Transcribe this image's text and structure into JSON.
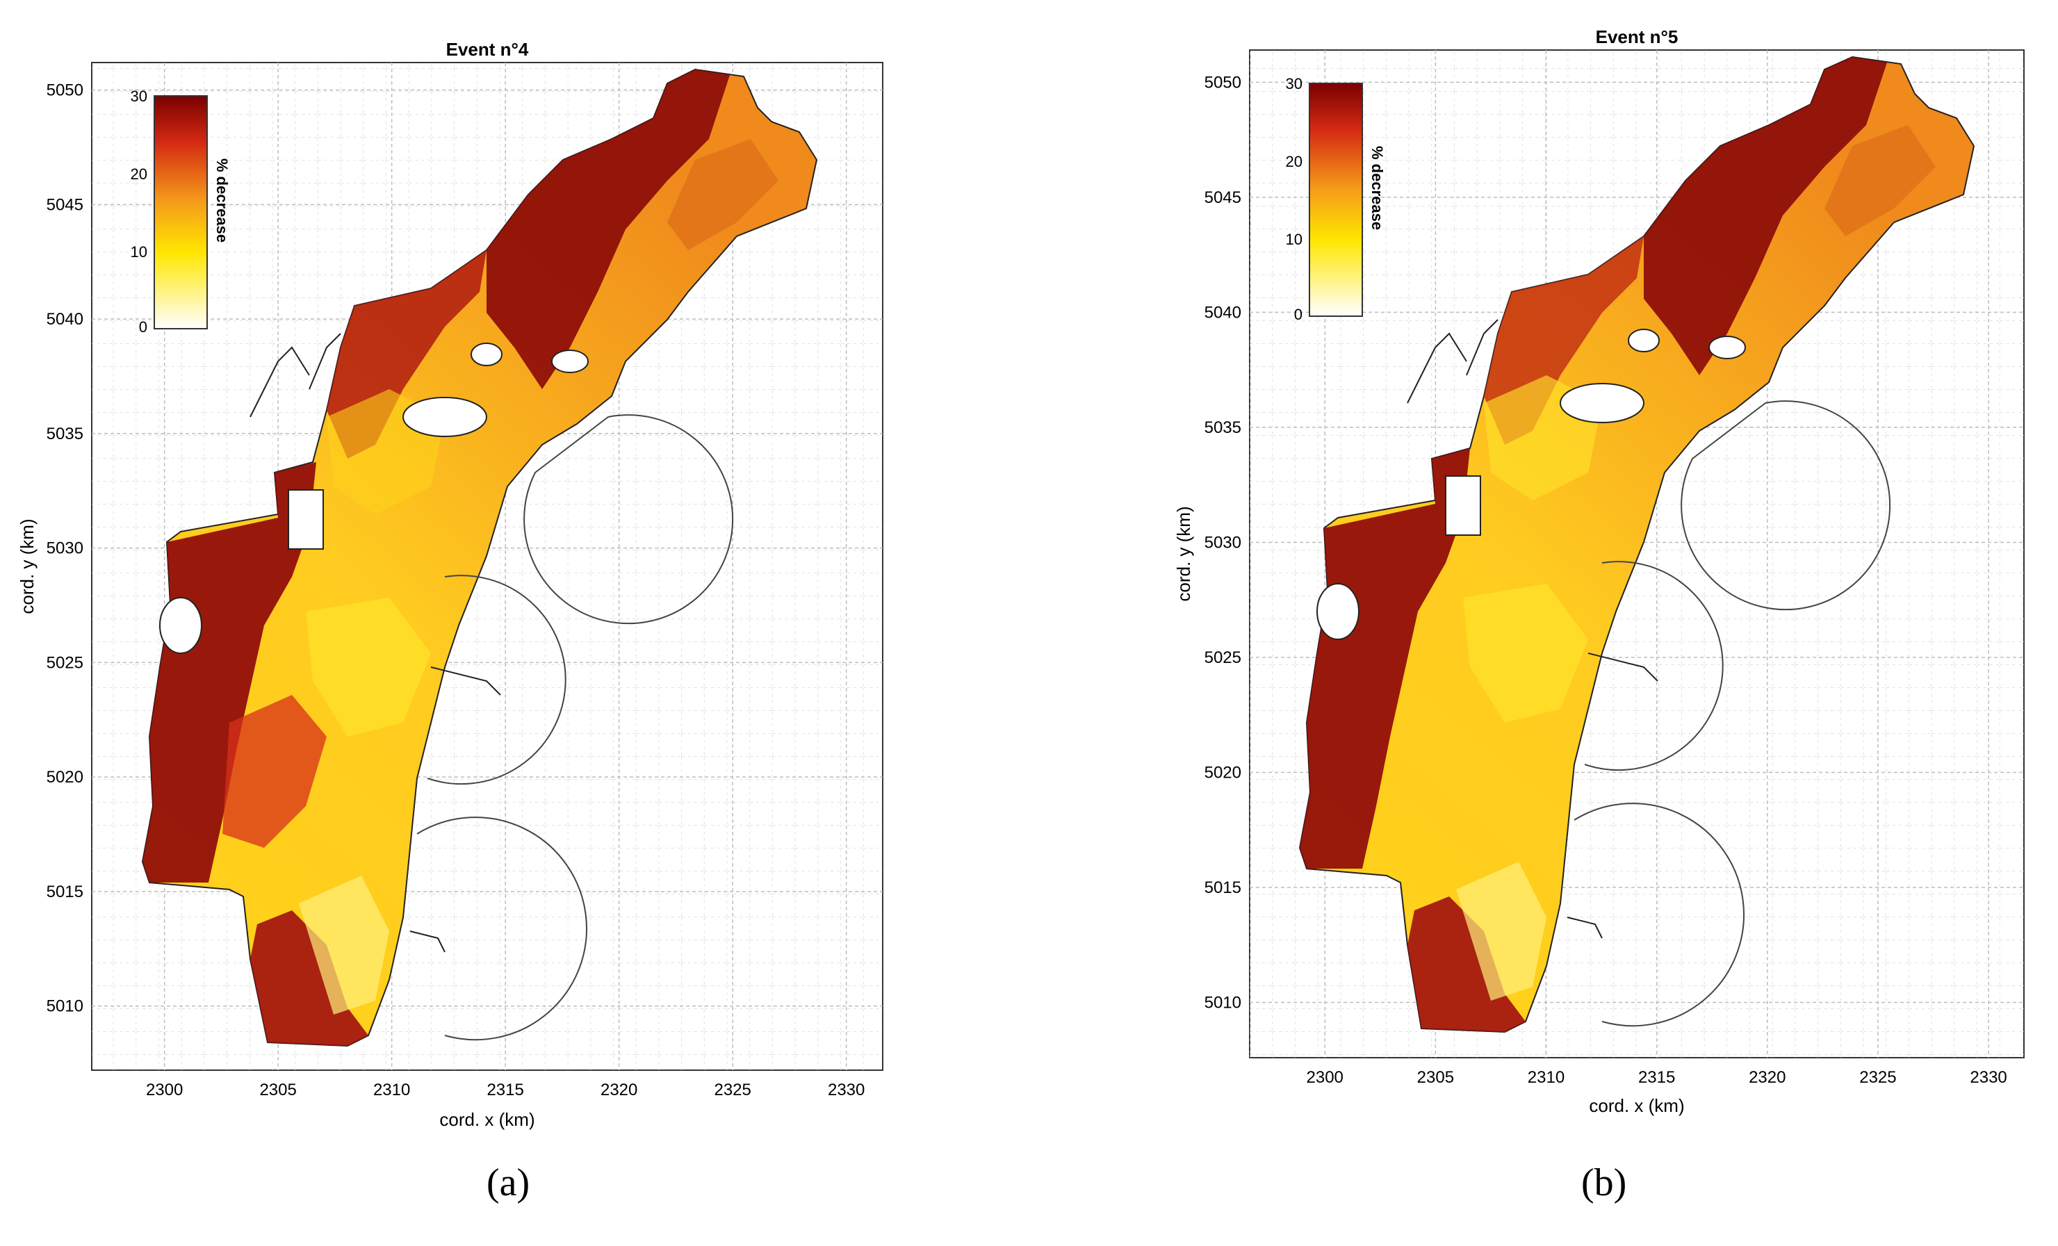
{
  "panels": [
    {
      "id": "a",
      "title": "Event n°4",
      "xlabel": "cord. x (km)",
      "ylabel": "cord. y (km)",
      "xticks": [
        "2300",
        "2305",
        "2310",
        "2315",
        "2320",
        "2325",
        "2330"
      ],
      "yticks": [
        "5010",
        "5015",
        "5020",
        "5025",
        "5030",
        "5035",
        "5040",
        "5045",
        "5050"
      ],
      "colorbar": {
        "label": "% decrease",
        "ticks": [
          "30",
          "20",
          "10",
          "0"
        ]
      },
      "caption": "(a)"
    },
    {
      "id": "b",
      "title": "Event n°5",
      "xlabel": "cord. x (km)",
      "ylabel": "cord. y (km)",
      "xticks": [
        "2300",
        "2305",
        "2310",
        "2315",
        "2320",
        "2325",
        "2330"
      ],
      "yticks": [
        "5010",
        "5015",
        "5020",
        "5025",
        "5030",
        "5035",
        "5040",
        "5045",
        "5050"
      ],
      "colorbar": {
        "label": "% decrease",
        "ticks": [
          "30",
          "20",
          "10",
          "0"
        ]
      },
      "caption": "(b)"
    }
  ],
  "colors": {
    "low": "#ffffff",
    "mid": "#ffe600",
    "orange": "#f59a1a",
    "high": "#b01010",
    "max": "#7a0000"
  }
}
